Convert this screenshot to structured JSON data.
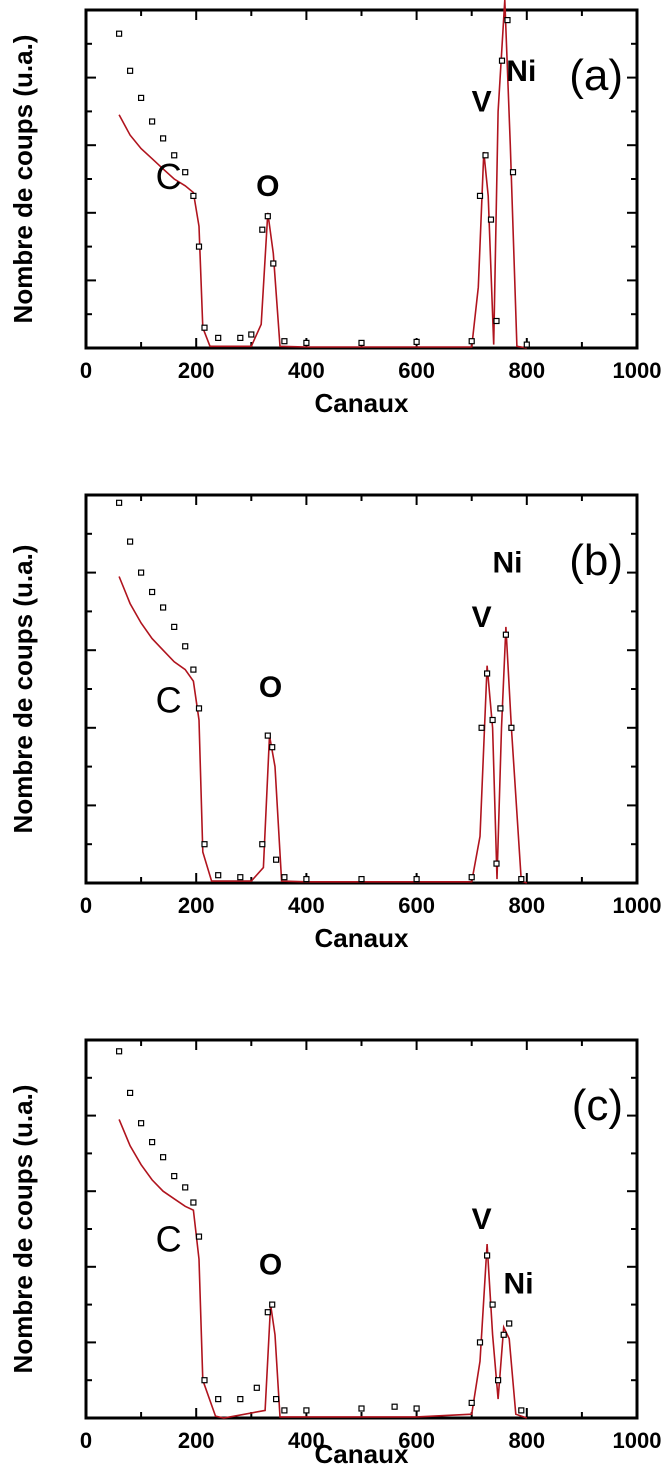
{
  "chart_data": [
    {
      "type": "scatter",
      "panel_label": "(a)",
      "xlabel": "Canaux",
      "ylabel": "Nombre de coups (u.a.)",
      "xlim": [
        0,
        1000
      ],
      "ylim": [
        0,
        100
      ],
      "xticks": [
        "0",
        "200",
        "400",
        "600",
        "800",
        "1000"
      ],
      "peak_labels": [
        {
          "text": "C",
          "x": 150,
          "y": 47
        },
        {
          "text": "O",
          "x": 330,
          "y": 45
        },
        {
          "text": "V",
          "x": 718,
          "y": 70
        },
        {
          "text": "Ni",
          "x": 790,
          "y": 79
        }
      ],
      "series": [
        {
          "kind": "points",
          "x": [
            60,
            80,
            100,
            120,
            140,
            160,
            180,
            195,
            205,
            215,
            240,
            280,
            300,
            320,
            330,
            340,
            360,
            400,
            500,
            600,
            700,
            715,
            725,
            735,
            745,
            755,
            765,
            775,
            800
          ],
          "y": [
            93,
            82,
            74,
            67,
            62,
            57,
            52,
            45,
            30,
            6,
            3,
            3,
            4,
            35,
            39,
            25,
            2,
            1.5,
            1.5,
            1.8,
            2,
            45,
            57,
            38,
            8,
            85,
            97,
            52,
            1
          ]
        },
        {
          "kind": "fit",
          "x": [
            60,
            80,
            100,
            120,
            140,
            160,
            180,
            195,
            205,
            212,
            225,
            300,
            318,
            330,
            340,
            352,
            400,
            600,
            700,
            712,
            722,
            730,
            740,
            748,
            760,
            770,
            782,
            800
          ],
          "y": [
            69,
            63,
            59,
            56,
            53,
            50,
            48,
            46,
            36,
            6,
            0.5,
            0.5,
            7,
            40,
            28,
            0.5,
            0.3,
            0.3,
            0.3,
            18,
            58,
            45,
            1,
            70,
            103,
            60,
            0.5,
            0
          ]
        }
      ]
    },
    {
      "type": "scatter",
      "panel_label": "(b)",
      "xlabel": "Canaux",
      "ylabel": "Nombre de coups (u.a.)",
      "xlim": [
        0,
        1000
      ],
      "ylim": [
        0,
        100
      ],
      "xticks": [
        "0",
        "200",
        "400",
        "600",
        "800",
        "1000"
      ],
      "peak_labels": [
        {
          "text": "C",
          "x": 150,
          "y": 44
        },
        {
          "text": "O",
          "x": 335,
          "y": 48
        },
        {
          "text": "V",
          "x": 718,
          "y": 66
        },
        {
          "text": "Ni",
          "x": 765,
          "y": 80
        }
      ],
      "series": [
        {
          "kind": "points",
          "x": [
            60,
            80,
            100,
            120,
            140,
            160,
            180,
            195,
            205,
            215,
            240,
            280,
            320,
            330,
            338,
            345,
            360,
            400,
            500,
            600,
            700,
            718,
            728,
            738,
            745,
            752,
            762,
            772,
            790
          ],
          "y": [
            98,
            88,
            80,
            75,
            71,
            66,
            61,
            55,
            45,
            10,
            2,
            1.5,
            10,
            38,
            35,
            6,
            1.5,
            1,
            1,
            1,
            1.5,
            40,
            54,
            42,
            5,
            45,
            64,
            40,
            1
          ]
        },
        {
          "kind": "fit",
          "x": [
            60,
            80,
            100,
            120,
            140,
            160,
            180,
            195,
            205,
            212,
            228,
            300,
            322,
            333,
            343,
            355,
            400,
            600,
            700,
            715,
            728,
            738,
            746,
            754,
            762,
            772,
            790,
            800
          ],
          "y": [
            79,
            72,
            67,
            63,
            60,
            57,
            55,
            52,
            42,
            8,
            0.5,
            0.5,
            4,
            38,
            30,
            0.5,
            0.3,
            0.3,
            0.3,
            12,
            56,
            40,
            1,
            40,
            66,
            40,
            0.5,
            0
          ]
        }
      ]
    },
    {
      "type": "scatter",
      "panel_label": "(c)",
      "xlabel": "Canaux",
      "ylabel": "Nombre de coups (u.a.)",
      "xlim": [
        0,
        1000
      ],
      "ylim": [
        0,
        100
      ],
      "xticks": [
        "0",
        "200",
        "400",
        "600",
        "800",
        "1000"
      ],
      "peak_labels": [
        {
          "text": "C",
          "x": 150,
          "y": 44
        },
        {
          "text": "O",
          "x": 335,
          "y": 38
        },
        {
          "text": "V",
          "x": 718,
          "y": 50
        },
        {
          "text": "Ni",
          "x": 785,
          "y": 33
        }
      ],
      "series": [
        {
          "kind": "points",
          "x": [
            60,
            80,
            100,
            120,
            140,
            160,
            180,
            195,
            205,
            215,
            240,
            280,
            310,
            330,
            338,
            345,
            360,
            400,
            500,
            560,
            600,
            700,
            715,
            728,
            738,
            748,
            758,
            768,
            790
          ],
          "y": [
            97,
            86,
            78,
            73,
            69,
            64,
            61,
            57,
            48,
            10,
            5,
            5,
            8,
            28,
            30,
            5,
            2,
            2,
            2.5,
            3,
            2.5,
            4,
            20,
            43,
            30,
            10,
            22,
            25,
            2
          ]
        },
        {
          "kind": "fit",
          "x": [
            60,
            80,
            100,
            120,
            140,
            160,
            180,
            195,
            205,
            212,
            235,
            250,
            325,
            335,
            343,
            352,
            400,
            600,
            700,
            715,
            728,
            738,
            748,
            758,
            768,
            780,
            800
          ],
          "y": [
            79,
            72,
            67,
            63,
            60,
            58,
            56,
            55,
            42,
            10,
            0.5,
            0,
            2,
            30,
            22,
            0.3,
            0.3,
            0.3,
            1,
            15,
            46,
            22,
            5,
            24,
            21,
            1,
            0
          ]
        }
      ]
    }
  ]
}
